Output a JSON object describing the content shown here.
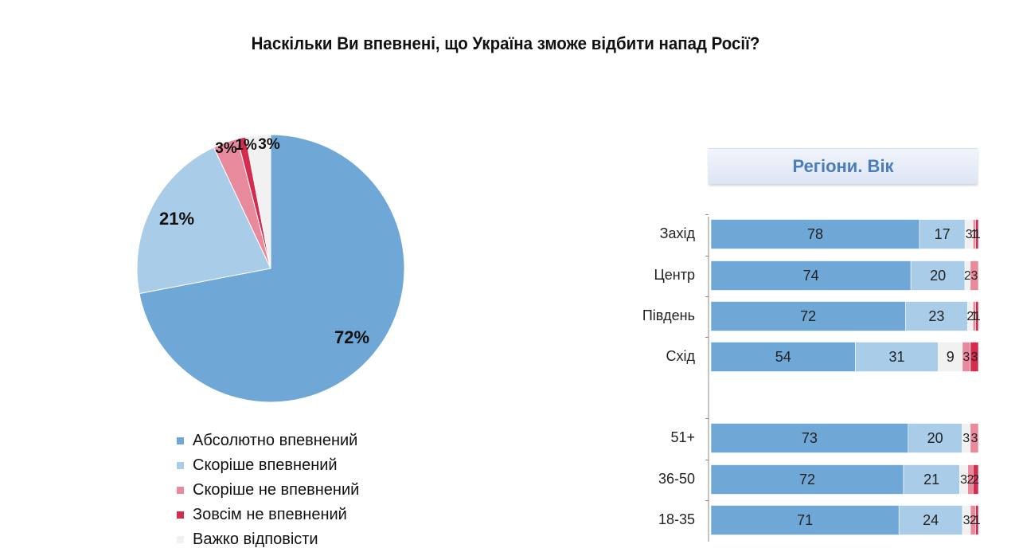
{
  "chart_data": [
    {
      "type": "pie",
      "title": "Наскільки Ви впевнені, що Україна зможе відбити напад Росії?",
      "slices": [
        {
          "name": "Абсолютно впевнений",
          "value": 72,
          "label": "72%",
          "color": "#6fa8d6"
        },
        {
          "name": "Скоріше впевнений",
          "value": 21,
          "label": "21%",
          "color": "#a9cde8"
        },
        {
          "name": "Скоріше не впевнений",
          "value": 3,
          "label": "3%",
          "color": "#e98a9c"
        },
        {
          "name": "Зовсім не впевнений",
          "value": 1,
          "label": "1%",
          "color": "#d42b4e"
        },
        {
          "name": "Важко відповісти",
          "value": 3,
          "label": "3%",
          "color": "#f1f1f1"
        }
      ]
    },
    {
      "type": "bar",
      "orientation": "horizontal",
      "stacked": true,
      "title": "Регіони. Вік",
      "categories": [
        "Захід",
        "Центр",
        "Південь",
        "Схід",
        "51+",
        "36-50",
        "18-35"
      ],
      "series": [
        {
          "name": "Абсолютно впевнений",
          "values": [
            78,
            74,
            72,
            54,
            73,
            72,
            71
          ]
        },
        {
          "name": "Скоріше впевнений",
          "values": [
            17,
            20,
            23,
            31,
            20,
            21,
            24
          ]
        },
        {
          "name": "Важко відповісти",
          "values": [
            3,
            2,
            2,
            9,
            3,
            3,
            3
          ]
        },
        {
          "name": "Скоріше не впевнений",
          "values": [
            1,
            3,
            1,
            3,
            3,
            2,
            2
          ]
        },
        {
          "name": "Зовсім не впевнений",
          "values": [
            1,
            0,
            1,
            3,
            0,
            2,
            1
          ]
        }
      ],
      "series_colors": [
        "#6fa8d6",
        "#a9cde8",
        "#f1f1f1",
        "#e98a9c",
        "#d42b4e"
      ],
      "xlim": [
        0,
        100
      ]
    }
  ]
}
